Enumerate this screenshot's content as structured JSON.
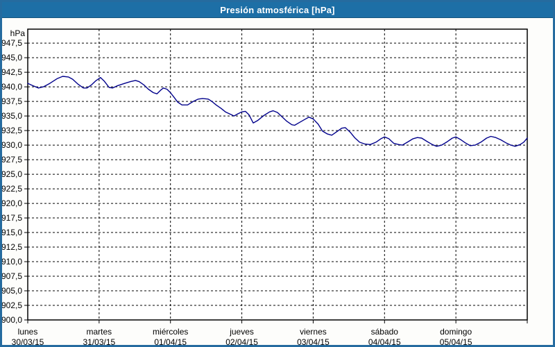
{
  "window": {
    "title": "Presión atmosférica [hPa]"
  },
  "colors": {
    "header_bg": "#1d6fa6",
    "window_border": "#256b9f",
    "grid": "#000000",
    "line": "#00008b",
    "plot_bg": "#ffffff"
  },
  "chart_data": {
    "type": "line",
    "title": "Presión atmosférica [hPa]",
    "grid": {
      "dashed": true,
      "horizontal_step": 2.5,
      "vertical": "per-day"
    },
    "legend": "none",
    "y_axis": {
      "unit": "hPa",
      "min": 900,
      "max": 949.9,
      "ticks": [
        {
          "value": 947.5,
          "label": "947,5"
        },
        {
          "value": 945.0,
          "label": "945,0"
        },
        {
          "value": 942.5,
          "label": "942,5"
        },
        {
          "value": 940.0,
          "label": "940,0"
        },
        {
          "value": 937.5,
          "label": "937,5"
        },
        {
          "value": 935.0,
          "label": "935,0"
        },
        {
          "value": 932.5,
          "label": "932,5"
        },
        {
          "value": 930.0,
          "label": "930,0"
        },
        {
          "value": 927.5,
          "label": "927,5"
        },
        {
          "value": 925.0,
          "label": "925,0"
        },
        {
          "value": 922.5,
          "label": "922,5"
        },
        {
          "value": 920.0,
          "label": "920,0"
        },
        {
          "value": 917.5,
          "label": "917,5"
        },
        {
          "value": 915.0,
          "label": "915,0"
        },
        {
          "value": 912.5,
          "label": "912,5"
        },
        {
          "value": 910.0,
          "label": "910,0"
        },
        {
          "value": 907.5,
          "label": "907,5"
        },
        {
          "value": 905.0,
          "label": "905,0"
        },
        {
          "value": 902.5,
          "label": "902,5"
        },
        {
          "value": 900.0,
          "label": "900,0"
        }
      ]
    },
    "x_axis": {
      "days": [
        {
          "label": "lunes",
          "date": "30/03/15"
        },
        {
          "label": "martes",
          "date": "31/03/15"
        },
        {
          "label": "miércoles",
          "date": "01/04/15"
        },
        {
          "label": "jueves",
          "date": "02/04/15"
        },
        {
          "label": "viernes",
          "date": "03/04/15"
        },
        {
          "label": "sábado",
          "date": "04/04/15"
        },
        {
          "label": "domingo",
          "date": "05/04/15"
        }
      ],
      "span_days": 7
    },
    "series": [
      {
        "name": "Presión atmosférica",
        "color": "#00008b",
        "points": [
          [
            0.0,
            940.6
          ],
          [
            0.07,
            940.2
          ],
          [
            0.15,
            939.8
          ],
          [
            0.22,
            940.0
          ],
          [
            0.31,
            940.6
          ],
          [
            0.41,
            941.4
          ],
          [
            0.49,
            941.8
          ],
          [
            0.57,
            941.7
          ],
          [
            0.63,
            941.3
          ],
          [
            0.7,
            940.5
          ],
          [
            0.78,
            939.8
          ],
          [
            0.83,
            939.8
          ],
          [
            0.89,
            940.3
          ],
          [
            0.95,
            941.0
          ],
          [
            1.02,
            941.6
          ],
          [
            1.07,
            941.0
          ],
          [
            1.14,
            939.9
          ],
          [
            1.19,
            939.8
          ],
          [
            1.26,
            940.2
          ],
          [
            1.36,
            940.6
          ],
          [
            1.44,
            940.9
          ],
          [
            1.51,
            941.1
          ],
          [
            1.56,
            940.9
          ],
          [
            1.63,
            940.3
          ],
          [
            1.69,
            939.6
          ],
          [
            1.76,
            939.0
          ],
          [
            1.81,
            938.8
          ],
          [
            1.86,
            939.4
          ],
          [
            1.9,
            939.8
          ],
          [
            1.95,
            939.6
          ],
          [
            2.0,
            939.0
          ],
          [
            2.05,
            938.2
          ],
          [
            2.1,
            937.4
          ],
          [
            2.16,
            936.9
          ],
          [
            2.24,
            936.9
          ],
          [
            2.32,
            937.5
          ],
          [
            2.39,
            937.9
          ],
          [
            2.45,
            938.0
          ],
          [
            2.53,
            937.9
          ],
          [
            2.58,
            937.5
          ],
          [
            2.64,
            936.9
          ],
          [
            2.71,
            936.3
          ],
          [
            2.77,
            935.7
          ],
          [
            2.84,
            935.3
          ],
          [
            2.89,
            935.0
          ],
          [
            2.95,
            935.4
          ],
          [
            3.0,
            935.7
          ],
          [
            3.05,
            935.8
          ],
          [
            3.1,
            935.2
          ],
          [
            3.16,
            933.8
          ],
          [
            3.22,
            934.2
          ],
          [
            3.31,
            935.1
          ],
          [
            3.39,
            935.7
          ],
          [
            3.44,
            935.9
          ],
          [
            3.5,
            935.6
          ],
          [
            3.56,
            934.9
          ],
          [
            3.63,
            934.1
          ],
          [
            3.7,
            933.5
          ],
          [
            3.74,
            933.4
          ],
          [
            3.81,
            933.9
          ],
          [
            3.88,
            934.4
          ],
          [
            3.94,
            934.8
          ],
          [
            4.0,
            934.5
          ],
          [
            4.07,
            933.6
          ],
          [
            4.13,
            932.4
          ],
          [
            4.2,
            931.9
          ],
          [
            4.26,
            931.7
          ],
          [
            4.33,
            932.3
          ],
          [
            4.4,
            932.9
          ],
          [
            4.45,
            933.0
          ],
          [
            4.52,
            932.2
          ],
          [
            4.58,
            931.3
          ],
          [
            4.65,
            930.5
          ],
          [
            4.72,
            930.2
          ],
          [
            4.8,
            930.1
          ],
          [
            4.88,
            930.5
          ],
          [
            4.95,
            931.1
          ],
          [
            5.0,
            931.4
          ],
          [
            5.06,
            931.1
          ],
          [
            5.13,
            930.3
          ],
          [
            5.2,
            930.1
          ],
          [
            5.25,
            930.0
          ],
          [
            5.32,
            930.5
          ],
          [
            5.4,
            931.1
          ],
          [
            5.46,
            931.3
          ],
          [
            5.52,
            931.2
          ],
          [
            5.6,
            930.6
          ],
          [
            5.67,
            930.1
          ],
          [
            5.73,
            929.8
          ],
          [
            5.8,
            930.0
          ],
          [
            5.88,
            930.6
          ],
          [
            5.95,
            931.2
          ],
          [
            6.0,
            931.4
          ],
          [
            6.06,
            931.0
          ],
          [
            6.13,
            930.4
          ],
          [
            6.2,
            929.9
          ],
          [
            6.27,
            930.0
          ],
          [
            6.35,
            930.5
          ],
          [
            6.43,
            931.2
          ],
          [
            6.49,
            931.5
          ],
          [
            6.56,
            931.3
          ],
          [
            6.63,
            930.9
          ],
          [
            6.7,
            930.4
          ],
          [
            6.77,
            930.0
          ],
          [
            6.83,
            929.8
          ],
          [
            6.9,
            930.1
          ],
          [
            6.95,
            930.5
          ],
          [
            7.0,
            931.2
          ]
        ]
      }
    ]
  }
}
